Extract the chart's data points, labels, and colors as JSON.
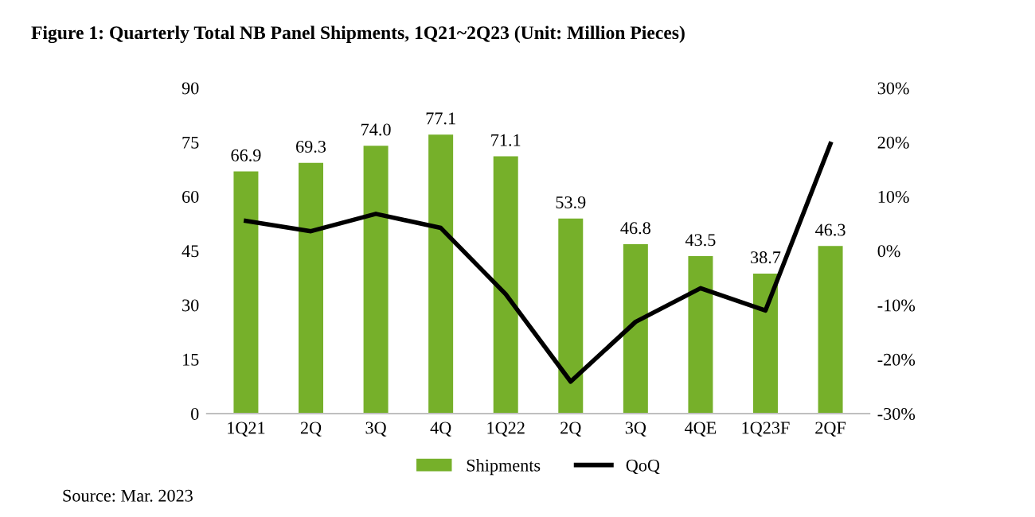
{
  "chart_data": {
    "type": "bar",
    "title": "Figure 1: Quarterly Total NB Panel Shipments, 1Q21~2Q23 (Unit: Million Pieces)",
    "categories": [
      "1Q21",
      "2Q",
      "3Q",
      "4Q",
      "1Q22",
      "2Q",
      "3Q",
      "4QE",
      "1Q23F",
      "2QF"
    ],
    "series": [
      {
        "name": "Shipments",
        "color": "#76b02a",
        "values": [
          66.9,
          69.3,
          74.0,
          77.1,
          71.1,
          53.9,
          46.8,
          43.5,
          38.7,
          46.3
        ],
        "value_labels": [
          "66.9",
          "69.3",
          "74.0",
          "77.1",
          "71.1",
          "53.9",
          "46.8",
          "43.5",
          "38.7",
          "46.3"
        ]
      },
      {
        "name": "QoQ",
        "type": "line",
        "axis": "y2",
        "color": "#000000",
        "values": [
          5.5,
          3.6,
          6.8,
          4.2,
          -8.0,
          -24.1,
          -13.1,
          -6.9,
          -11.0,
          19.7
        ]
      }
    ],
    "ylim": [
      0,
      90
    ],
    "yticks": [
      0,
      15,
      30,
      45,
      60,
      75,
      90
    ],
    "y2lim": [
      -30,
      30
    ],
    "y2ticks": [
      {
        "value": -30,
        "label": "-30%"
      },
      {
        "value": -20,
        "label": "-20%"
      },
      {
        "value": -10,
        "label": "-10%"
      },
      {
        "value": 0,
        "label": "0%"
      },
      {
        "value": 10,
        "label": "10%"
      },
      {
        "value": 20,
        "label": "20%"
      },
      {
        "value": 30,
        "label": "30%"
      }
    ],
    "grid": false,
    "legend": "bottom",
    "marker": "none",
    "line_style": "solid",
    "annotations": [
      "Source: Mar. 2023"
    ]
  }
}
